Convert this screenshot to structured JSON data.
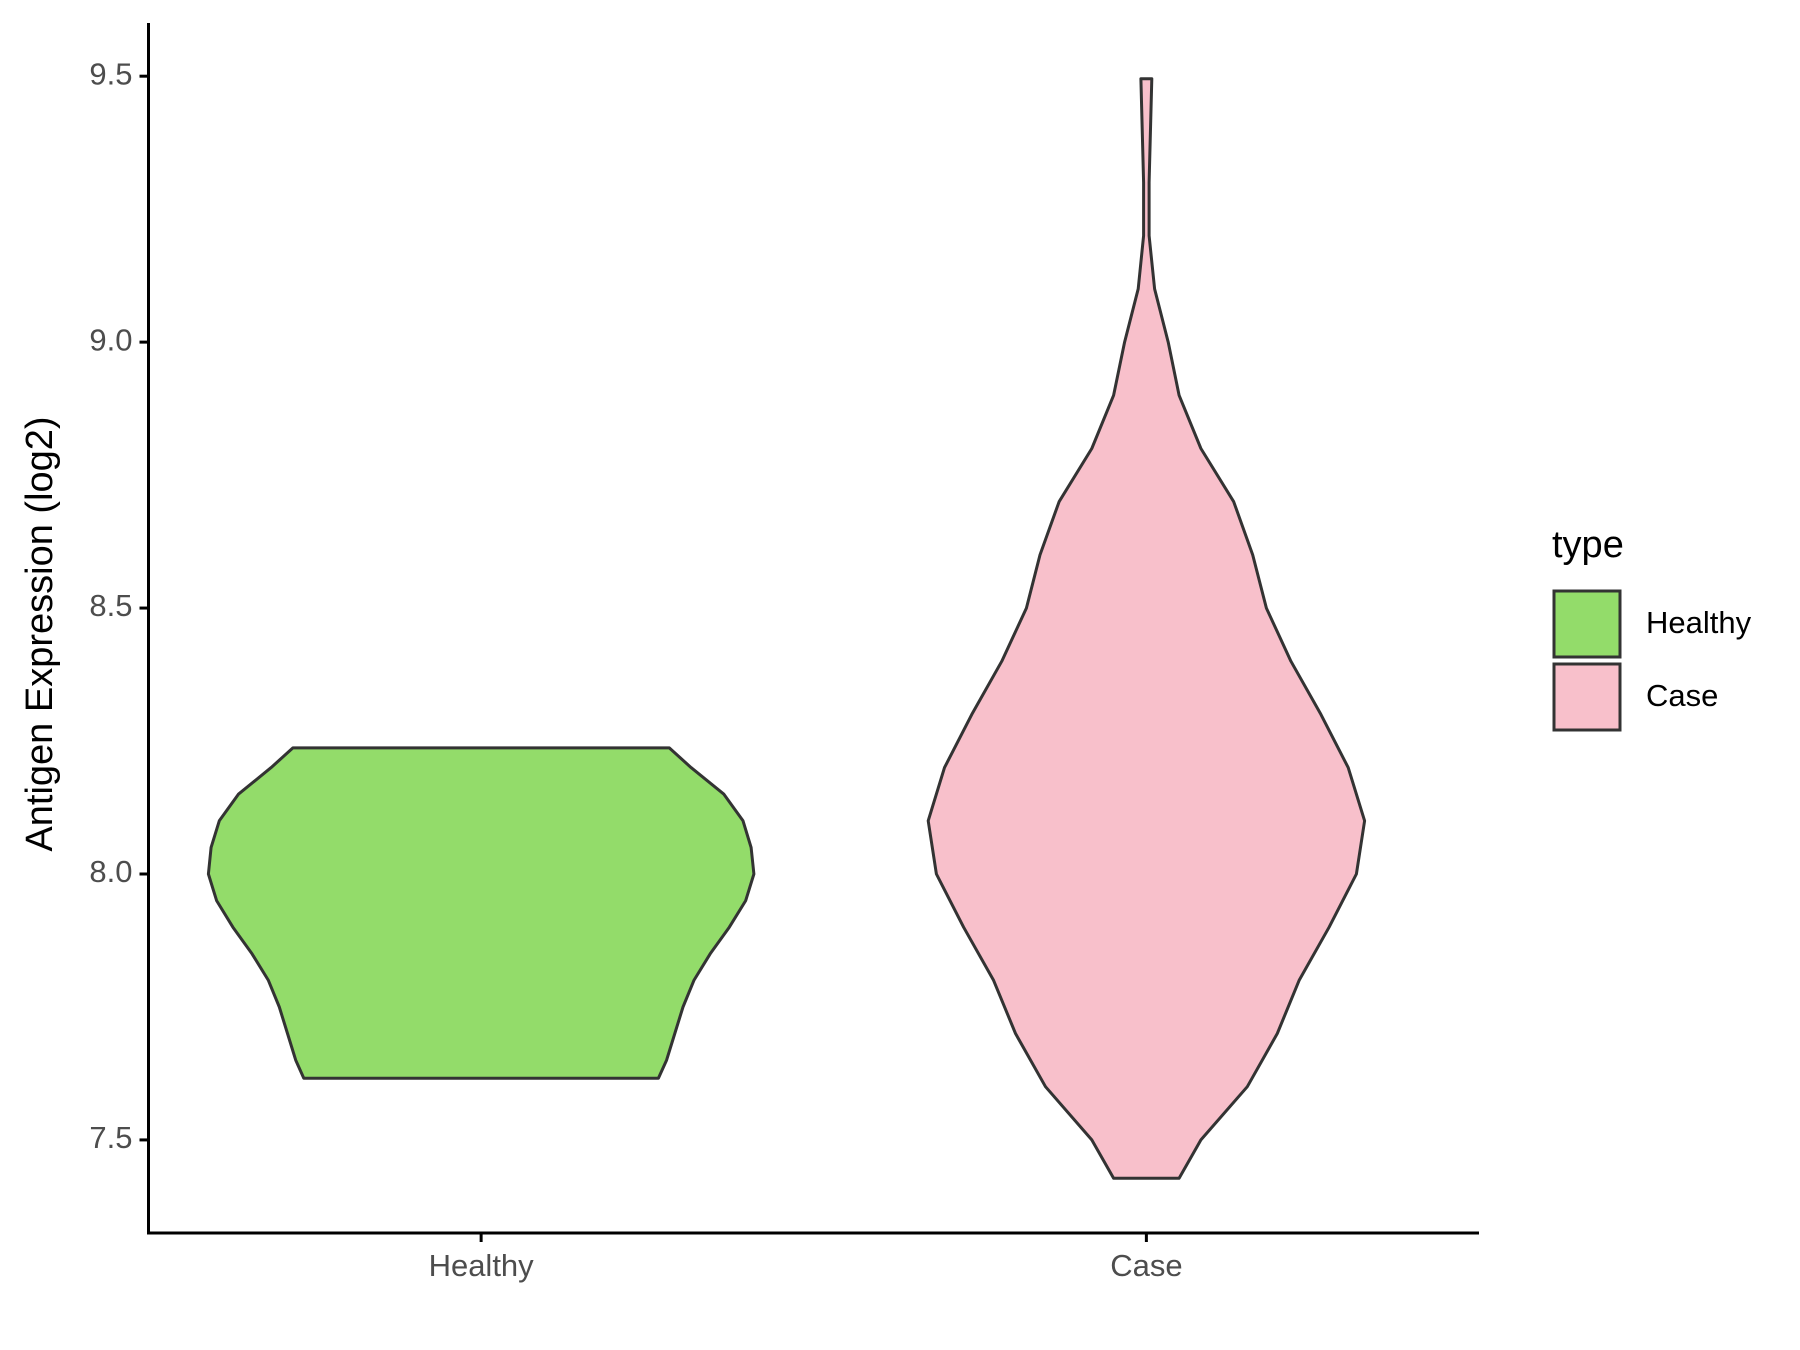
{
  "chart_data": {
    "type": "violin",
    "y_label": "Antigen Expression (log2)",
    "categories": [
      "Healthy",
      "Case"
    ],
    "legend_title": "type",
    "ylim": [
      7.325,
      9.6
    ],
    "yticks": [
      7.5,
      {
        "value": 8,
        "label": "8.0"
      },
      8.5,
      {
        "value": 9,
        "label": "9.0"
      },
      9.5
    ],
    "series": [
      {
        "name": "Healthy",
        "color": "#93dc6a",
        "y": [
          8.237,
          8.2,
          8.15,
          8.1,
          8.05,
          8.0,
          7.95,
          7.9,
          7.85,
          7.8,
          7.75,
          7.7,
          7.65,
          7.616
        ],
        "density": [
          0.69,
          0.77,
          0.89,
          0.96,
          0.99,
          1.0,
          0.97,
          0.91,
          0.84,
          0.78,
          0.74,
          0.71,
          0.68,
          0.65
        ]
      },
      {
        "name": "Case",
        "color": "#f8c0cb",
        "y": [
          9.495,
          9.3,
          9.2,
          9.1,
          9.0,
          8.9,
          8.8,
          8.7,
          8.6,
          8.5,
          8.4,
          8.3,
          8.2,
          8.1,
          8.0,
          7.9,
          7.8,
          7.7,
          7.6,
          7.5,
          7.428
        ],
        "density": [
          0.02,
          0.01,
          0.01,
          0.03,
          0.08,
          0.12,
          0.2,
          0.32,
          0.39,
          0.44,
          0.53,
          0.64,
          0.74,
          0.8,
          0.77,
          0.67,
          0.56,
          0.48,
          0.37,
          0.2,
          0.12
        ]
      }
    ]
  }
}
